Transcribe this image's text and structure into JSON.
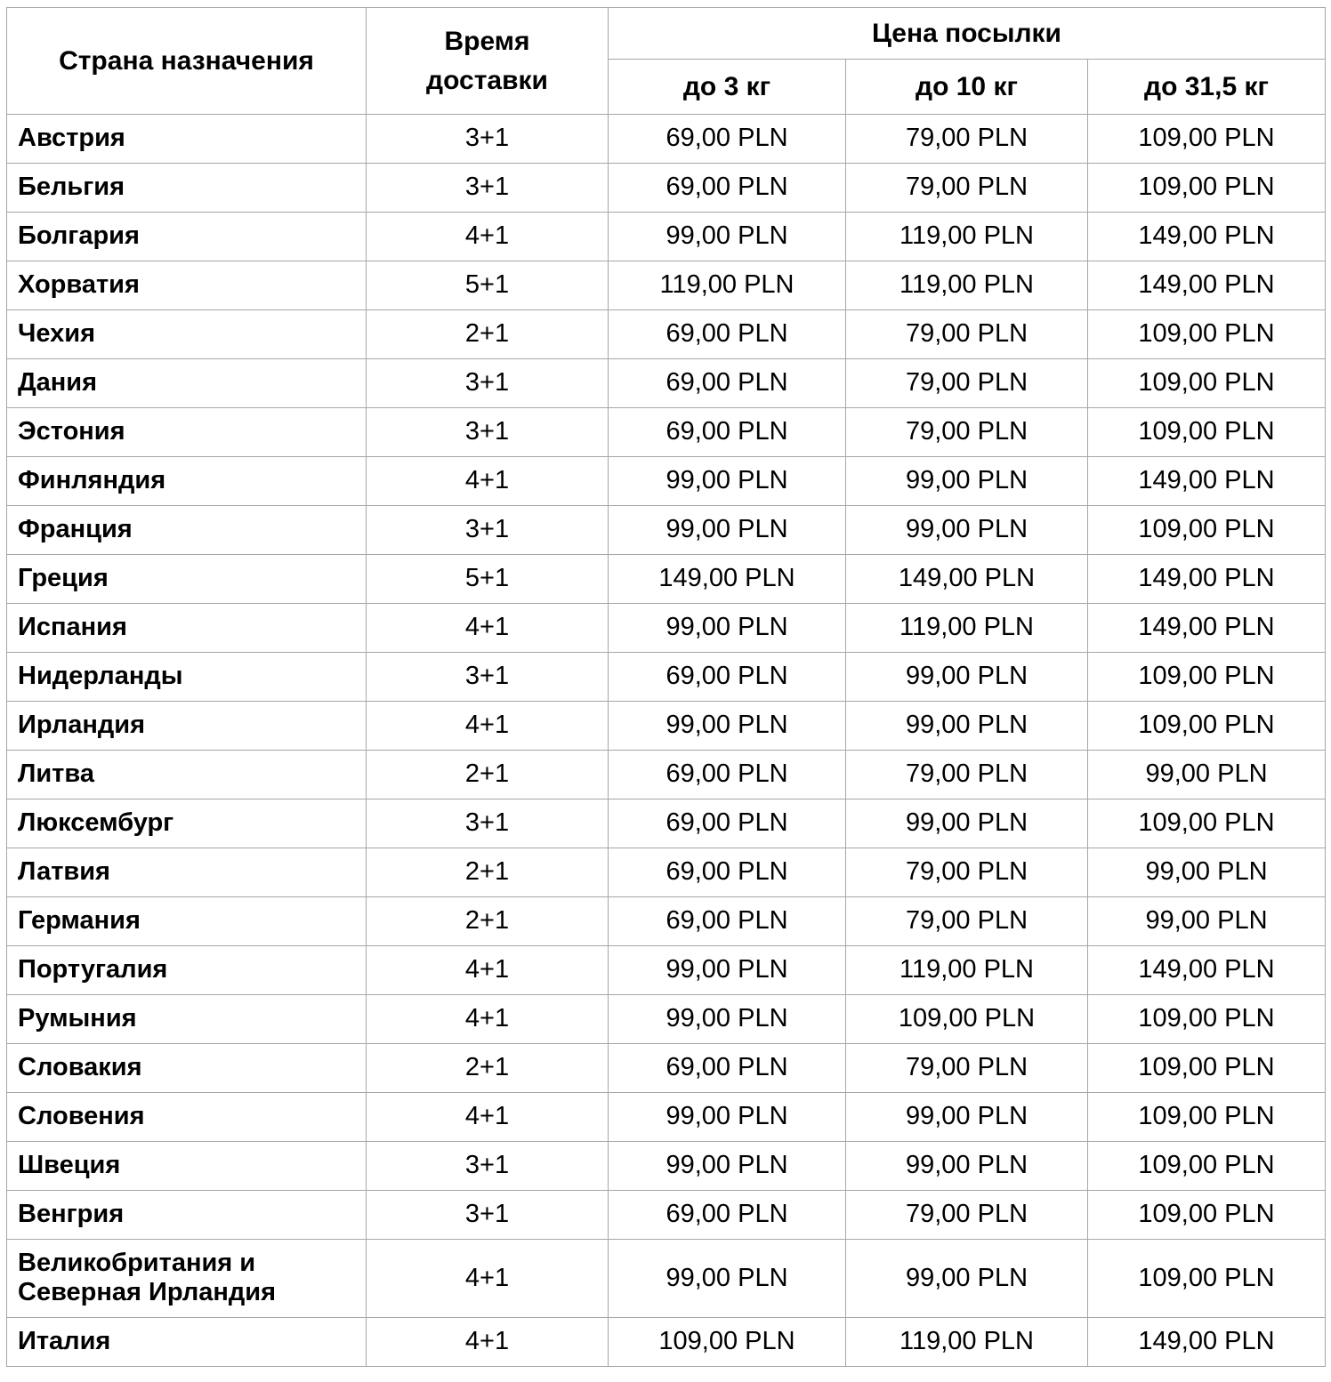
{
  "table": {
    "header": {
      "country": "Страна назначения",
      "delivery": "Время\nдоставки",
      "price_group": "Цена посылки",
      "weight_cols": [
        "до 3 кг",
        "до 10 кг",
        "до 31,5 кг"
      ]
    },
    "rows": [
      {
        "country": "Австрия",
        "delivery": "3+1",
        "p3": "69,00 PLN",
        "p10": "79,00 PLN",
        "p31": "109,00 PLN"
      },
      {
        "country": "Бельгия",
        "delivery": "3+1",
        "p3": "69,00 PLN",
        "p10": "79,00 PLN",
        "p31": "109,00 PLN"
      },
      {
        "country": "Болгария",
        "delivery": "4+1",
        "p3": "99,00 PLN",
        "p10": "119,00 PLN",
        "p31": "149,00 PLN"
      },
      {
        "country": "Хорватия",
        "delivery": "5+1",
        "p3": "119,00 PLN",
        "p10": "119,00 PLN",
        "p31": "149,00 PLN"
      },
      {
        "country": "Чехия",
        "delivery": "2+1",
        "p3": "69,00 PLN",
        "p10": "79,00 PLN",
        "p31": "109,00 PLN"
      },
      {
        "country": "Дания",
        "delivery": "3+1",
        "p3": "69,00 PLN",
        "p10": "79,00 PLN",
        "p31": "109,00 PLN"
      },
      {
        "country": "Эстония",
        "delivery": "3+1",
        "p3": "69,00 PLN",
        "p10": "79,00 PLN",
        "p31": "109,00 PLN"
      },
      {
        "country": "Финляндия",
        "delivery": "4+1",
        "p3": "99,00 PLN",
        "p10": "99,00 PLN",
        "p31": "149,00 PLN"
      },
      {
        "country": "Франция",
        "delivery": "3+1",
        "p3": "99,00 PLN",
        "p10": "99,00 PLN",
        "p31": "109,00 PLN"
      },
      {
        "country": "Греция",
        "delivery": "5+1",
        "p3": "149,00 PLN",
        "p10": "149,00 PLN",
        "p31": "149,00 PLN"
      },
      {
        "country": "Испания",
        "delivery": "4+1",
        "p3": "99,00 PLN",
        "p10": "119,00 PLN",
        "p31": "149,00 PLN"
      },
      {
        "country": "Нидерланды",
        "delivery": "3+1",
        "p3": "69,00 PLN",
        "p10": "99,00 PLN",
        "p31": "109,00 PLN"
      },
      {
        "country": "Ирландия",
        "delivery": "4+1",
        "p3": "99,00 PLN",
        "p10": "99,00 PLN",
        "p31": "109,00 PLN"
      },
      {
        "country": "Литва",
        "delivery": "2+1",
        "p3": "69,00 PLN",
        "p10": "79,00 PLN",
        "p31": "99,00 PLN"
      },
      {
        "country": "Люксембург",
        "delivery": "3+1",
        "p3": "69,00 PLN",
        "p10": "99,00 PLN",
        "p31": "109,00 PLN"
      },
      {
        "country": "Латвия",
        "delivery": "2+1",
        "p3": "69,00 PLN",
        "p10": "79,00 PLN",
        "p31": "99,00 PLN"
      },
      {
        "country": "Германия",
        "delivery": "2+1",
        "p3": "69,00 PLN",
        "p10": "79,00 PLN",
        "p31": "99,00 PLN"
      },
      {
        "country": "Португалия",
        "delivery": "4+1",
        "p3": "99,00 PLN",
        "p10": "119,00 PLN",
        "p31": "149,00 PLN"
      },
      {
        "country": "Румыния",
        "delivery": "4+1",
        "p3": "99,00 PLN",
        "p10": "109,00 PLN",
        "p31": "109,00 PLN"
      },
      {
        "country": "Словакия",
        "delivery": "2+1",
        "p3": "69,00 PLN",
        "p10": "79,00 PLN",
        "p31": "109,00 PLN"
      },
      {
        "country": "Словения",
        "delivery": "4+1",
        "p3": "99,00 PLN",
        "p10": "99,00 PLN",
        "p31": "109,00 PLN"
      },
      {
        "country": "Швеция",
        "delivery": "3+1",
        "p3": "99,00 PLN",
        "p10": "99,00 PLN",
        "p31": "109,00 PLN"
      },
      {
        "country": "Венгрия",
        "delivery": "3+1",
        "p3": "69,00 PLN",
        "p10": "79,00 PLN",
        "p31": "109,00 PLN"
      },
      {
        "country": "Великобритания и Северная Ирландия",
        "delivery": "4+1",
        "p3": "99,00 PLN",
        "p10": "99,00 PLN",
        "p31": "109,00 PLN"
      },
      {
        "country": "Италия",
        "delivery": "4+1",
        "p3": "109,00 PLN",
        "p10": "119,00 PLN",
        "p31": "149,00 PLN"
      }
    ]
  },
  "colors": {
    "border": "#a6a6a6",
    "text": "#000000",
    "background": "#ffffff"
  }
}
